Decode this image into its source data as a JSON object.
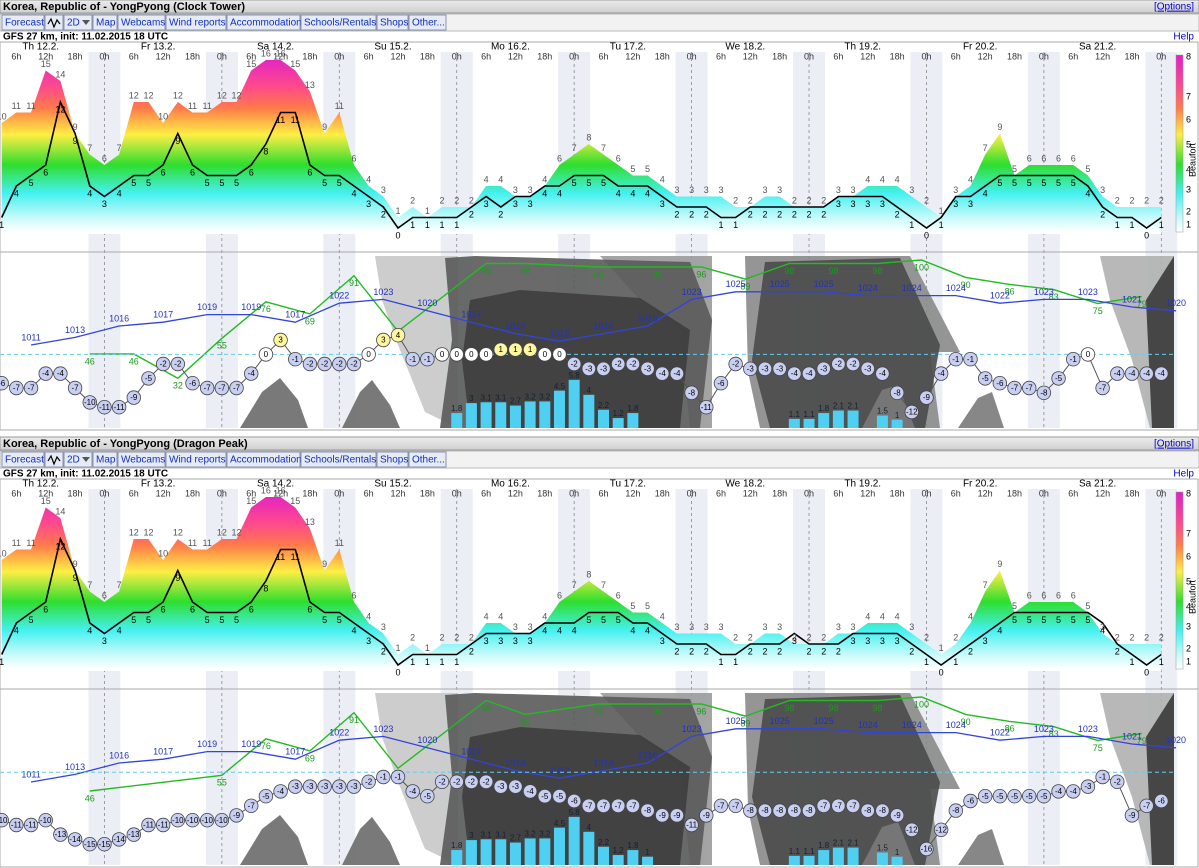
{
  "options": "[Options]",
  "help": "Help",
  "nav": [
    "Forecast",
    "2D",
    "Map",
    "Webcams",
    "Wind reports",
    "Accommodation",
    "Schools/Rentals",
    "Shops",
    "Other..."
  ],
  "model": "GFS 27 km, init: 11.02.2015 18 UTC",
  "time_axis": {
    "days": [
      {
        "value": 12,
        "label": "Th 12.2."
      },
      {
        "value": 36,
        "label": "Fr 13.2."
      },
      {
        "value": 60,
        "label": "Sa 14.2."
      },
      {
        "value": 84,
        "label": "Su 15.2."
      },
      {
        "value": 108,
        "label": "Mo 16.2."
      },
      {
        "value": 132,
        "label": "Tu 17.2."
      },
      {
        "value": 156,
        "label": "We 18.2."
      },
      {
        "value": 180,
        "label": "Th 19.2."
      },
      {
        "value": 204,
        "label": "Fr 20.2."
      },
      {
        "value": 228,
        "label": "Sa 21.2."
      }
    ],
    "hours": [
      {
        "value": 6,
        "label": "6h"
      },
      {
        "value": 12,
        "label": "12h"
      },
      {
        "value": 18,
        "label": "18h"
      },
      {
        "value": 24,
        "label": "0h"
      },
      {
        "value": 30,
        "label": "6h"
      },
      {
        "value": 36,
        "label": "12h"
      },
      {
        "value": 42,
        "label": "18h"
      },
      {
        "value": 48,
        "label": "0h"
      },
      {
        "value": 54,
        "label": "6h"
      },
      {
        "value": 60,
        "label": "12h"
      },
      {
        "value": 66,
        "label": "18h"
      },
      {
        "value": 72,
        "label": "0h"
      },
      {
        "value": 78,
        "label": "6h"
      },
      {
        "value": 84,
        "label": "12h"
      },
      {
        "value": 90,
        "label": "18h"
      },
      {
        "value": 96,
        "label": "0h"
      },
      {
        "value": 102,
        "label": "6h"
      },
      {
        "value": 108,
        "label": "12h"
      },
      {
        "value": 114,
        "label": "18h"
      },
      {
        "value": 120,
        "label": "0h"
      },
      {
        "value": 126,
        "label": "6h"
      },
      {
        "value": 132,
        "label": "12h"
      },
      {
        "value": 138,
        "label": "18h"
      },
      {
        "value": 144,
        "label": "0h"
      },
      {
        "value": 150,
        "label": "6h"
      },
      {
        "value": 156,
        "label": "12h"
      },
      {
        "value": 162,
        "label": "18h"
      },
      {
        "value": 168,
        "label": "0h"
      },
      {
        "value": 174,
        "label": "6h"
      },
      {
        "value": 180,
        "label": "12h"
      },
      {
        "value": 186,
        "label": "18h"
      },
      {
        "value": 192,
        "label": "0h"
      },
      {
        "value": 198,
        "label": "6h"
      },
      {
        "value": 204,
        "label": "12h"
      },
      {
        "value": 210,
        "label": "18h"
      },
      {
        "value": 216,
        "label": "0h"
      },
      {
        "value": 222,
        "label": "6h"
      },
      {
        "value": 228,
        "label": "12h"
      },
      {
        "value": 234,
        "label": "18h"
      },
      {
        "value": 240,
        "label": "0h"
      }
    ]
  },
  "beaufort": {
    "label": "Beaufort",
    "ticks": [
      1,
      2,
      3,
      4,
      5,
      6,
      7,
      8
    ]
  },
  "times": [
    3,
    6,
    9,
    12,
    15,
    18,
    21,
    24,
    27,
    30,
    33,
    36,
    39,
    42,
    45,
    48,
    51,
    54,
    57,
    60,
    63,
    66,
    69,
    72,
    75,
    78,
    81,
    84,
    87,
    90,
    93,
    96,
    99,
    102,
    105,
    108,
    111,
    114,
    117,
    120,
    123,
    126,
    129,
    132,
    135,
    138,
    141,
    144,
    147,
    150,
    153,
    156,
    159,
    162,
    165,
    168,
    171,
    174,
    177,
    180,
    183,
    186,
    189,
    192,
    195,
    198,
    201,
    204,
    207,
    210,
    213,
    216,
    219,
    222,
    225,
    228,
    231,
    234,
    237,
    240
  ],
  "panels": [
    {
      "title": "Korea, Republic of - YongPyong (Clock Tower)",
      "wind": {
        "mean": [
          1,
          4,
          5,
          6,
          12,
          9,
          4,
          3,
          4,
          5,
          5,
          6,
          9,
          6,
          5,
          5,
          5,
          6,
          8,
          11,
          11,
          6,
          5,
          5,
          4,
          3,
          2,
          0,
          1,
          1,
          1,
          1,
          2,
          3,
          2,
          3,
          3,
          4,
          4,
          5,
          5,
          5,
          4,
          4,
          4,
          3,
          2,
          2,
          2,
          1,
          1,
          2,
          2,
          2,
          2,
          2,
          2,
          3,
          3,
          3,
          3,
          2,
          1,
          0,
          1,
          3,
          3,
          4,
          5,
          5,
          5,
          5,
          5,
          5,
          4,
          2,
          1,
          1,
          0,
          1
        ],
        "gust": [
          10,
          11,
          11,
          15,
          14,
          9,
          7,
          6,
          7,
          12,
          12,
          10,
          12,
          11,
          11,
          12,
          12,
          15,
          16,
          16,
          15,
          13,
          9,
          11,
          6,
          4,
          3,
          1,
          2,
          1,
          2,
          2,
          2,
          4,
          4,
          3,
          3,
          4,
          6,
          7,
          8,
          7,
          6,
          5,
          5,
          4,
          3,
          3,
          3,
          3,
          2,
          2,
          3,
          3,
          2,
          2,
          2,
          3,
          3,
          4,
          4,
          4,
          3,
          2,
          1,
          3,
          4,
          7,
          9,
          5,
          6,
          6,
          6,
          6,
          5,
          3,
          2,
          2,
          2,
          2
        ]
      },
      "temperature": [
        -6,
        -7,
        -7,
        -4,
        -4,
        -7,
        -10,
        -11,
        -11,
        -9,
        -5,
        -2,
        -2,
        -6,
        -7,
        -7,
        -7,
        -4,
        0,
        3,
        -1,
        -2,
        -2,
        -2,
        -2,
        0,
        3,
        4,
        -1,
        -1,
        0,
        0,
        0,
        0,
        1,
        1,
        1,
        0,
        0,
        -2,
        -3,
        -3,
        -2,
        -2,
        -3,
        -4,
        -4,
        -8,
        -11,
        -6,
        -2,
        -3,
        -3,
        -3,
        -4,
        -4,
        -3,
        -2,
        -2,
        -3,
        -4,
        -8,
        -12,
        -9,
        -4,
        -1,
        -1,
        -5,
        -6,
        -7,
        -7,
        -8,
        -5,
        -1,
        0,
        -7,
        -4,
        -4,
        -4,
        -4
      ],
      "pressure": {
        "hours": [
          9,
          18,
          27,
          36,
          45,
          54,
          63,
          72,
          81,
          90,
          99,
          108,
          117,
          126,
          135,
          144,
          153,
          162,
          171,
          180,
          189,
          198,
          207,
          216,
          225,
          234,
          243
        ],
        "values": [
          1011,
          1013,
          1016,
          1017,
          1019,
          1019,
          1017,
          1022,
          1023,
          1020,
          1017,
          1014,
          1012,
          1014,
          1016,
          1023,
          1025,
          1025,
          1025,
          1024,
          1024,
          1024,
          1022,
          1023,
          1023,
          1021,
          1020
        ]
      },
      "humidity": {
        "hours": [
          21,
          30,
          39,
          48,
          57,
          66,
          75,
          84,
          102,
          110,
          125,
          137,
          146,
          155,
          164,
          173,
          182,
          191,
          200,
          209,
          218,
          227,
          236
        ],
        "values": [
          46,
          46,
          32,
          55,
          76,
          69,
          91,
          59,
          98,
          98,
          96,
          96,
          96,
          89,
          98,
          98,
          98,
          100,
          90,
          86,
          83,
          75,
          79
        ]
      },
      "precipitation": {
        "hours": [
          96,
          99,
          102,
          105,
          108,
          111,
          114,
          117,
          120,
          123,
          126,
          129,
          132,
          165,
          168,
          171,
          174,
          177,
          183,
          186
        ],
        "values": [
          1.8,
          3,
          3.1,
          3.1,
          2.7,
          3.2,
          3.2,
          4.5,
          5.8,
          4,
          2.2,
          1.2,
          1.8,
          1.1,
          1.1,
          1.8,
          2.1,
          2.1,
          1.5,
          1
        ]
      }
    },
    {
      "title": "Korea, Republic of - YongPyong (Dragon Peak)",
      "wind": {
        "mean": [
          1,
          4,
          5,
          6,
          12,
          9,
          4,
          3,
          4,
          5,
          5,
          6,
          9,
          6,
          5,
          5,
          5,
          6,
          8,
          11,
          11,
          6,
          5,
          5,
          4,
          3,
          2,
          0,
          1,
          1,
          1,
          1,
          2,
          3,
          3,
          3,
          3,
          4,
          4,
          4,
          5,
          5,
          5,
          4,
          4,
          3,
          2,
          2,
          2,
          1,
          1,
          2,
          2,
          2,
          3,
          2,
          2,
          2,
          3,
          3,
          3,
          3,
          2,
          1,
          0,
          1,
          2,
          3,
          4,
          5,
          5,
          5,
          5,
          5,
          5,
          4,
          2,
          1,
          0,
          1
        ],
        "gust": [
          10,
          11,
          11,
          15,
          14,
          9,
          7,
          6,
          7,
          12,
          12,
          10,
          12,
          11,
          11,
          12,
          12,
          15,
          16,
          16,
          15,
          13,
          9,
          11,
          6,
          4,
          3,
          1,
          2,
          1,
          2,
          2,
          2,
          4,
          4,
          3,
          3,
          4,
          6,
          7,
          8,
          7,
          6,
          5,
          5,
          4,
          3,
          3,
          3,
          3,
          2,
          2,
          3,
          3,
          2,
          2,
          2,
          3,
          3,
          4,
          4,
          4,
          3,
          2,
          1,
          2,
          4,
          7,
          9,
          5,
          6,
          6,
          6,
          6,
          5,
          3,
          2,
          2,
          2,
          2
        ]
      },
      "temperature": [
        -10,
        -11,
        -11,
        -10,
        -13,
        -14,
        -15,
        -15,
        -14,
        -13,
        -11,
        -11,
        -10,
        -10,
        -10,
        -10,
        -9,
        -7,
        -5,
        -4,
        -3,
        -3,
        -3,
        -3,
        -3,
        -2,
        -1,
        -1,
        -4,
        -5,
        -2,
        -2,
        -2,
        -2,
        -3,
        -3,
        -4,
        -5,
        -5,
        -6,
        -7,
        -7,
        -7,
        -7,
        -8,
        -9,
        -9,
        -11,
        -9,
        -7,
        -7,
        -8,
        -8,
        -8,
        -8,
        -8,
        -7,
        -7,
        -7,
        -8,
        -8,
        -9,
        -12,
        -16,
        -12,
        -8,
        -6,
        -5,
        -5,
        -5,
        -5,
        -5,
        -4,
        -4,
        -3,
        -1,
        -2,
        -9,
        -7,
        -6
      ],
      "pressure": {
        "hours": [
          9,
          18,
          27,
          36,
          45,
          54,
          63,
          72,
          81,
          90,
          99,
          108,
          117,
          126,
          135,
          144,
          153,
          162,
          171,
          180,
          189,
          198,
          207,
          216,
          225,
          234,
          243
        ],
        "values": [
          1011,
          1013,
          1016,
          1017,
          1019,
          1019,
          1017,
          1022,
          1023,
          1020,
          1017,
          1014,
          1012,
          1014,
          1016,
          1023,
          1025,
          1025,
          1025,
          1024,
          1024,
          1024,
          1022,
          1023,
          1023,
          1021,
          1020
        ]
      },
      "humidity": {
        "hours": [
          21,
          48,
          57,
          66,
          75,
          84,
          102,
          110,
          125,
          137,
          146,
          155,
          164,
          173,
          182,
          191,
          200,
          209,
          218,
          227,
          236
        ],
        "values": [
          46,
          55,
          76,
          69,
          91,
          59,
          98,
          90,
          96,
          96,
          96,
          89,
          98,
          98,
          98,
          100,
          90,
          86,
          83,
          75,
          79
        ]
      },
      "precipitation": {
        "hours": [
          96,
          99,
          102,
          105,
          108,
          111,
          114,
          117,
          120,
          123,
          126,
          129,
          132,
          135,
          165,
          168,
          171,
          174,
          177,
          183,
          186
        ],
        "values": [
          1.8,
          3,
          3.1,
          3.1,
          2.7,
          3.2,
          3.2,
          4.5,
          5.8,
          4,
          2.2,
          1.2,
          1.8,
          1,
          1.1,
          1.1,
          1.8,
          2.1,
          2.1,
          1.5,
          1
        ]
      }
    }
  ]
}
